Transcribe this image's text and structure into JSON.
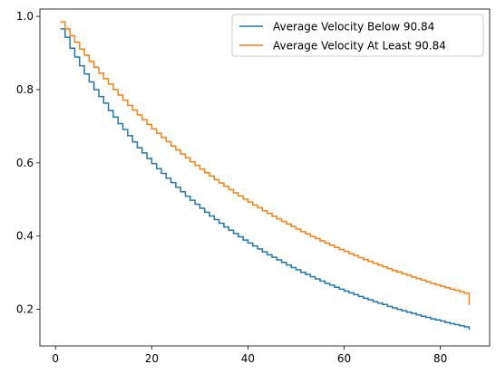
{
  "chart_data": {
    "type": "line",
    "drawstyle": "steps-post",
    "title": "",
    "xlabel": "",
    "ylabel": "",
    "xlim": [
      -3.25,
      90.25
    ],
    "ylim": [
      0.1,
      1.02
    ],
    "x_ticks": [
      0,
      20,
      40,
      60,
      80
    ],
    "y_ticks": [
      0.2,
      0.4,
      0.6,
      0.8,
      1.0
    ],
    "x_tick_labels": [
      "0",
      "20",
      "40",
      "60",
      "80"
    ],
    "y_tick_labels": [
      "0.2",
      "0.4",
      "0.6",
      "0.8",
      "1.0"
    ],
    "legend_position": "top-right",
    "grid": false,
    "x": [
      1,
      2,
      3,
      4,
      5,
      6,
      7,
      8,
      9,
      10,
      11,
      12,
      13,
      14,
      15,
      16,
      17,
      18,
      19,
      20,
      21,
      22,
      23,
      24,
      25,
      26,
      27,
      28,
      29,
      30,
      31,
      32,
      33,
      34,
      35,
      36,
      37,
      38,
      39,
      40,
      41,
      42,
      43,
      44,
      45,
      46,
      47,
      48,
      49,
      50,
      51,
      52,
      53,
      54,
      55,
      56,
      57,
      58,
      59,
      60,
      61,
      62,
      63,
      64,
      65,
      66,
      67,
      68,
      69,
      70,
      71,
      72,
      73,
      74,
      75,
      76,
      77,
      78,
      79,
      80,
      81,
      82,
      83,
      84,
      85,
      86
    ],
    "series": [
      {
        "name": "Average Velocity Below 90.84",
        "color": "#1f77b4",
        "values": [
          0.966,
          0.943,
          0.913,
          0.889,
          0.865,
          0.843,
          0.821,
          0.8,
          0.781,
          0.763,
          0.743,
          0.725,
          0.707,
          0.691,
          0.674,
          0.657,
          0.641,
          0.627,
          0.612,
          0.598,
          0.584,
          0.571,
          0.558,
          0.546,
          0.533,
          0.521,
          0.509,
          0.498,
          0.487,
          0.476,
          0.465,
          0.455,
          0.445,
          0.435,
          0.425,
          0.416,
          0.407,
          0.398,
          0.389,
          0.381,
          0.373,
          0.365,
          0.357,
          0.349,
          0.342,
          0.335,
          0.328,
          0.321,
          0.314,
          0.308,
          0.301,
          0.295,
          0.289,
          0.283,
          0.277,
          0.271,
          0.266,
          0.26,
          0.255,
          0.25,
          0.245,
          0.24,
          0.235,
          0.23,
          0.226,
          0.221,
          0.217,
          0.213,
          0.208,
          0.204,
          0.2,
          0.196,
          0.192,
          0.189,
          0.185,
          0.181,
          0.178,
          0.174,
          0.171,
          0.168,
          0.164,
          0.161,
          0.158,
          0.155,
          0.152,
          0.144
        ]
      },
      {
        "name": "Average Velocity At Least 90.84",
        "color": "#ff7f0e",
        "values": [
          0.985,
          0.966,
          0.947,
          0.929,
          0.911,
          0.894,
          0.877,
          0.861,
          0.845,
          0.83,
          0.815,
          0.8,
          0.785,
          0.771,
          0.757,
          0.744,
          0.731,
          0.718,
          0.705,
          0.693,
          0.681,
          0.669,
          0.658,
          0.646,
          0.635,
          0.624,
          0.614,
          0.603,
          0.593,
          0.583,
          0.573,
          0.564,
          0.554,
          0.545,
          0.536,
          0.527,
          0.518,
          0.51,
          0.501,
          0.493,
          0.485,
          0.477,
          0.469,
          0.462,
          0.454,
          0.447,
          0.44,
          0.433,
          0.426,
          0.419,
          0.412,
          0.406,
          0.399,
          0.393,
          0.387,
          0.381,
          0.375,
          0.369,
          0.363,
          0.358,
          0.352,
          0.347,
          0.341,
          0.336,
          0.331,
          0.326,
          0.321,
          0.316,
          0.311,
          0.306,
          0.302,
          0.297,
          0.293,
          0.288,
          0.284,
          0.28,
          0.275,
          0.271,
          0.267,
          0.263,
          0.259,
          0.255,
          0.252,
          0.248,
          0.244,
          0.212
        ]
      }
    ]
  }
}
